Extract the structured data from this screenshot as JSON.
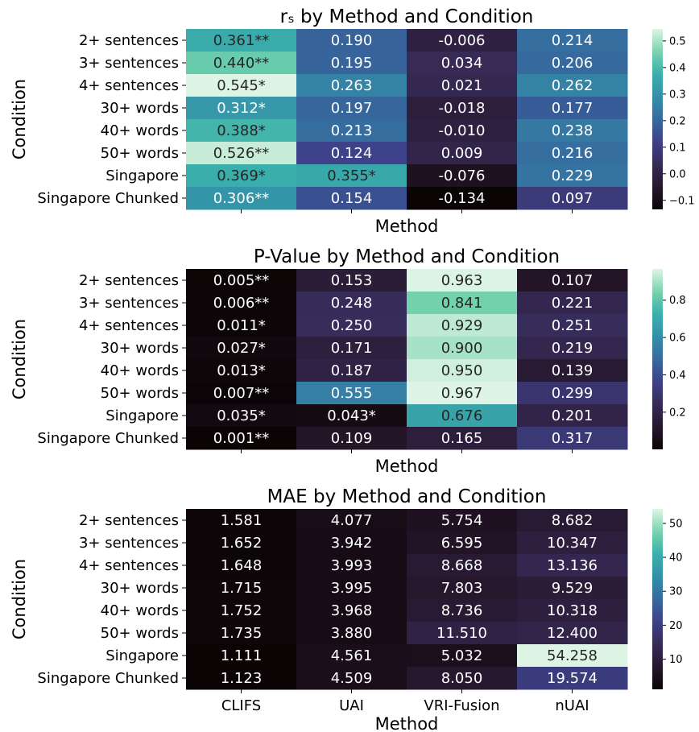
{
  "chart_data": [
    {
      "type": "heatmap",
      "title": "rₛ by Method and Condition",
      "xlabel": "Method",
      "ylabel": "Condition",
      "show_x_ticklabels": false,
      "rows": [
        "2+ sentences",
        "3+ sentences",
        "4+ sentences",
        "30+ words",
        "40+ words",
        "50+ words",
        "Singapore",
        "Singapore Chunked"
      ],
      "columns": [
        "CLIFS",
        "UAI",
        "VRI-Fusion",
        "nUAI"
      ],
      "values": [
        [
          0.361,
          0.19,
          -0.006,
          0.214
        ],
        [
          0.44,
          0.195,
          0.034,
          0.206
        ],
        [
          0.545,
          0.263,
          0.021,
          0.262
        ],
        [
          0.312,
          0.197,
          -0.018,
          0.177
        ],
        [
          0.388,
          0.213,
          -0.01,
          0.238
        ],
        [
          0.526,
          0.124,
          0.009,
          0.216
        ],
        [
          0.369,
          0.355,
          -0.076,
          0.229
        ],
        [
          0.306,
          0.154,
          -0.134,
          0.097
        ]
      ],
      "labels": [
        [
          "0.361**",
          "0.190",
          "-0.006",
          "0.214"
        ],
        [
          "0.440**",
          "0.195",
          "0.034",
          "0.206"
        ],
        [
          "0.545*",
          "0.263",
          "0.021",
          "0.262"
        ],
        [
          "0.312*",
          "0.197",
          "-0.018",
          "0.177"
        ],
        [
          "0.388*",
          "0.213",
          "-0.010",
          "0.238"
        ],
        [
          "0.526**",
          "0.124",
          "0.009",
          "0.216"
        ],
        [
          "0.369*",
          "0.355*",
          "-0.076",
          "0.229"
        ],
        [
          "0.306**",
          "0.154",
          "-0.134",
          "0.097"
        ]
      ],
      "colorbar": {
        "min": -0.134,
        "max": 0.545,
        "ticks": [
          -0.1,
          0.0,
          0.1,
          0.2,
          0.3,
          0.4,
          0.5
        ],
        "tick_labels": [
          "−0.1",
          "0.0",
          "0.1",
          "0.2",
          "0.3",
          "0.4",
          "0.5"
        ]
      },
      "colormap": "mako"
    },
    {
      "type": "heatmap",
      "title": "P-Value by Method and Condition",
      "xlabel": "Method",
      "ylabel": "Condition",
      "show_x_ticklabels": false,
      "rows": [
        "2+ sentences",
        "3+ sentences",
        "4+ sentences",
        "30+ words",
        "40+ words",
        "50+ words",
        "Singapore",
        "Singapore Chunked"
      ],
      "columns": [
        "CLIFS",
        "UAI",
        "VRI-Fusion",
        "nUAI"
      ],
      "values": [
        [
          0.005,
          0.153,
          0.963,
          0.107
        ],
        [
          0.006,
          0.248,
          0.841,
          0.221
        ],
        [
          0.011,
          0.25,
          0.929,
          0.251
        ],
        [
          0.027,
          0.171,
          0.9,
          0.219
        ],
        [
          0.013,
          0.187,
          0.95,
          0.139
        ],
        [
          0.007,
          0.555,
          0.967,
          0.299
        ],
        [
          0.035,
          0.043,
          0.676,
          0.201
        ],
        [
          0.001,
          0.109,
          0.165,
          0.317
        ]
      ],
      "labels": [
        [
          "0.005**",
          "0.153",
          "0.963",
          "0.107"
        ],
        [
          "0.006**",
          "0.248",
          "0.841",
          "0.221"
        ],
        [
          "0.011*",
          "0.250",
          "0.929",
          "0.251"
        ],
        [
          "0.027*",
          "0.171",
          "0.900",
          "0.219"
        ],
        [
          "0.013*",
          "0.187",
          "0.950",
          "0.139"
        ],
        [
          "0.007**",
          "0.555",
          "0.967",
          "0.299"
        ],
        [
          "0.035*",
          "0.043*",
          "0.676",
          "0.201"
        ],
        [
          "0.001**",
          "0.109",
          "0.165",
          "0.317"
        ]
      ],
      "colorbar": {
        "min": 0.001,
        "max": 0.967,
        "ticks": [
          0.2,
          0.4,
          0.6,
          0.8
        ],
        "tick_labels": [
          "0.2",
          "0.4",
          "0.6",
          "0.8"
        ]
      },
      "colormap": "mako"
    },
    {
      "type": "heatmap",
      "title": "MAE by Method and Condition",
      "xlabel": "Method",
      "ylabel": "Condition",
      "show_x_ticklabels": true,
      "rows": [
        "2+ sentences",
        "3+ sentences",
        "4+ sentences",
        "30+ words",
        "40+ words",
        "50+ words",
        "Singapore",
        "Singapore Chunked"
      ],
      "columns": [
        "CLIFS",
        "UAI",
        "VRI-Fusion",
        "nUAI"
      ],
      "values": [
        [
          1.581,
          4.077,
          5.754,
          8.682
        ],
        [
          1.652,
          3.942,
          6.595,
          10.347
        ],
        [
          1.648,
          3.993,
          8.668,
          13.136
        ],
        [
          1.715,
          3.995,
          7.803,
          9.529
        ],
        [
          1.752,
          3.968,
          8.736,
          10.318
        ],
        [
          1.735,
          3.88,
          11.51,
          12.4
        ],
        [
          1.111,
          4.561,
          5.032,
          54.258
        ],
        [
          1.123,
          4.509,
          8.05,
          19.574
        ]
      ],
      "labels": [
        [
          "1.581",
          "4.077",
          "5.754",
          "8.682"
        ],
        [
          "1.652",
          "3.942",
          "6.595",
          "10.347"
        ],
        [
          "1.648",
          "3.993",
          "8.668",
          "13.136"
        ],
        [
          "1.715",
          "3.995",
          "7.803",
          "9.529"
        ],
        [
          "1.752",
          "3.968",
          "8.736",
          "10.318"
        ],
        [
          "1.735",
          "3.880",
          "11.510",
          "12.400"
        ],
        [
          "1.111",
          "4.561",
          "5.032",
          "54.258"
        ],
        [
          "1.123",
          "4.509",
          "8.050",
          "19.574"
        ]
      ],
      "colorbar": {
        "min": 1.111,
        "max": 54.258,
        "ticks": [
          10,
          20,
          30,
          40,
          50
        ],
        "tick_labels": [
          "10",
          "20",
          "30",
          "40",
          "50"
        ]
      },
      "colormap": "mako"
    }
  ]
}
